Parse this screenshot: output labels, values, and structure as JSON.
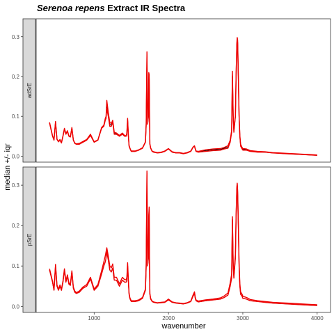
{
  "chart_data": {
    "type": "line",
    "title_italic": "Serenoa repens",
    "title_rest": " Extract IR Spectra",
    "xlabel": "wavenumber",
    "ylabel": "median +/- iqr",
    "xlim": [
      220,
      4180
    ],
    "x_ticks": [
      1000,
      2000,
      3000,
      4000
    ],
    "x_tick_labels": [
      "1000",
      "2000",
      "3000",
      "4000"
    ],
    "legend": "none",
    "grid": false,
    "colors": {
      "median": "#000000",
      "iqr": "#ee0000"
    },
    "panels": [
      {
        "strip_label": "adSrE",
        "ylim": [
          -0.015,
          0.345
        ],
        "y_ticks": [
          0.0,
          0.1,
          0.2,
          0.3
        ],
        "y_tick_labels": [
          "0.0",
          "0.1",
          "0.2",
          "0.3"
        ],
        "x": [
          400,
          440,
          460,
          480,
          500,
          520,
          540,
          560,
          580,
          600,
          620,
          640,
          660,
          680,
          700,
          720,
          740,
          760,
          800,
          850,
          900,
          950,
          1000,
          1050,
          1100,
          1130,
          1150,
          1160,
          1170,
          1190,
          1210,
          1230,
          1250,
          1270,
          1300,
          1340,
          1380,
          1410,
          1430,
          1440,
          1450,
          1460,
          1470,
          1480,
          1490,
          1500,
          1550,
          1600,
          1650,
          1690,
          1700,
          1710,
          1715,
          1720,
          1730,
          1735,
          1740,
          1745,
          1750,
          1760,
          1780,
          1800,
          1850,
          1900,
          1950,
          2000,
          2050,
          2100,
          2150,
          2200,
          2250,
          2300,
          2330,
          2350,
          2360,
          2370,
          2400,
          2500,
          2600,
          2700,
          2750,
          2800,
          2830,
          2850,
          2860,
          2870,
          2880,
          2900,
          2910,
          2920,
          2925,
          2930,
          2940,
          2950,
          2960,
          2970,
          2990,
          3000,
          3050,
          3100,
          3200,
          3300,
          3400,
          3500,
          3600,
          3700,
          3800,
          3900,
          4000
        ],
        "series": [
          {
            "name": "",
            "role": "iqr-low",
            "values": [
              0.083,
              0.05,
              0.04,
              0.085,
              0.042,
              0.036,
              0.04,
              0.033,
              0.05,
              0.068,
              0.055,
              0.062,
              0.05,
              0.048,
              0.07,
              0.04,
              0.032,
              0.03,
              0.03,
              0.035,
              0.04,
              0.052,
              0.035,
              0.04,
              0.07,
              0.075,
              0.09,
              0.095,
              0.12,
              0.1,
              0.075,
              0.075,
              0.085,
              0.055,
              0.055,
              0.05,
              0.055,
              0.05,
              0.05,
              0.055,
              0.09,
              0.05,
              0.025,
              0.02,
              0.015,
              0.012,
              0.012,
              0.015,
              0.02,
              0.035,
              0.08,
              0.25,
              0.16,
              0.08,
              0.1,
              0.19,
              0.195,
              0.1,
              0.03,
              0.02,
              0.012,
              0.01,
              0.008,
              0.009,
              0.012,
              0.018,
              0.01,
              0.008,
              0.008,
              0.006,
              0.008,
              0.012,
              0.022,
              0.025,
              0.018,
              0.012,
              0.01,
              0.012,
              0.014,
              0.015,
              0.018,
              0.02,
              0.035,
              0.06,
              0.2,
              0.1,
              0.06,
              0.1,
              0.2,
              0.28,
              0.292,
              0.285,
              0.2,
              0.1,
              0.05,
              0.025,
              0.018,
              0.015,
              0.015,
              0.012,
              0.01,
              0.01,
              0.008,
              0.007,
              0.006,
              0.005,
              0.004,
              0.003,
              0.002
            ]
          },
          {
            "name": "",
            "role": "median",
            "values": [
              0.084,
              0.05,
              0.041,
              0.086,
              0.042,
              0.036,
              0.041,
              0.033,
              0.05,
              0.069,
              0.056,
              0.063,
              0.05,
              0.048,
              0.071,
              0.04,
              0.032,
              0.03,
              0.031,
              0.036,
              0.041,
              0.053,
              0.035,
              0.04,
              0.071,
              0.076,
              0.092,
              0.097,
              0.13,
              0.105,
              0.08,
              0.078,
              0.088,
              0.057,
              0.056,
              0.05,
              0.056,
              0.051,
              0.05,
              0.056,
              0.092,
              0.051,
              0.026,
              0.02,
              0.015,
              0.012,
              0.012,
              0.015,
              0.02,
              0.035,
              0.081,
              0.257,
              0.162,
              0.081,
              0.1,
              0.2,
              0.2,
              0.1,
              0.03,
              0.02,
              0.012,
              0.01,
              0.008,
              0.009,
              0.012,
              0.018,
              0.01,
              0.008,
              0.008,
              0.006,
              0.008,
              0.012,
              0.022,
              0.025,
              0.018,
              0.012,
              0.011,
              0.014,
              0.016,
              0.017,
              0.02,
              0.023,
              0.038,
              0.062,
              0.207,
              0.1,
              0.062,
              0.1,
              0.2,
              0.28,
              0.295,
              0.29,
              0.2,
              0.1,
              0.05,
              0.028,
              0.02,
              0.017,
              0.016,
              0.013,
              0.011,
              0.01,
              0.008,
              0.007,
              0.006,
              0.005,
              0.004,
              0.003,
              0.002
            ]
          },
          {
            "name": "",
            "role": "iqr-high",
            "values": [
              0.085,
              0.051,
              0.042,
              0.087,
              0.043,
              0.037,
              0.042,
              0.034,
              0.051,
              0.07,
              0.057,
              0.064,
              0.051,
              0.049,
              0.072,
              0.041,
              0.033,
              0.031,
              0.032,
              0.037,
              0.042,
              0.055,
              0.036,
              0.041,
              0.072,
              0.078,
              0.095,
              0.1,
              0.14,
              0.11,
              0.085,
              0.082,
              0.09,
              0.06,
              0.058,
              0.052,
              0.058,
              0.052,
              0.051,
              0.058,
              0.095,
              0.052,
              0.027,
              0.021,
              0.016,
              0.013,
              0.013,
              0.016,
              0.021,
              0.036,
              0.082,
              0.262,
              0.165,
              0.083,
              0.102,
              0.21,
              0.205,
              0.102,
              0.031,
              0.021,
              0.013,
              0.011,
              0.009,
              0.01,
              0.013,
              0.019,
              0.011,
              0.009,
              0.009,
              0.007,
              0.009,
              0.013,
              0.023,
              0.026,
              0.019,
              0.013,
              0.012,
              0.016,
              0.018,
              0.019,
              0.022,
              0.026,
              0.04,
              0.065,
              0.213,
              0.103,
              0.064,
              0.102,
              0.205,
              0.285,
              0.298,
              0.292,
              0.205,
              0.103,
              0.052,
              0.03,
              0.022,
              0.019,
              0.018,
              0.014,
              0.012,
              0.011,
              0.009,
              0.008,
              0.007,
              0.006,
              0.005,
              0.004,
              0.003
            ]
          }
        ]
      },
      {
        "strip_label": "pSrE",
        "ylim": [
          -0.015,
          0.345
        ],
        "y_ticks": [
          0.0,
          0.1,
          0.2,
          0.3
        ],
        "y_tick_labels": [
          "0.0",
          "0.1",
          "0.2",
          "0.3"
        ],
        "x": [
          400,
          440,
          460,
          480,
          500,
          520,
          540,
          560,
          580,
          600,
          620,
          640,
          660,
          680,
          700,
          720,
          740,
          760,
          800,
          850,
          900,
          950,
          1000,
          1050,
          1100,
          1130,
          1150,
          1160,
          1170,
          1190,
          1210,
          1230,
          1250,
          1270,
          1300,
          1340,
          1380,
          1410,
          1430,
          1440,
          1450,
          1460,
          1470,
          1480,
          1490,
          1500,
          1550,
          1600,
          1650,
          1690,
          1700,
          1710,
          1715,
          1720,
          1730,
          1735,
          1740,
          1745,
          1750,
          1760,
          1780,
          1800,
          1850,
          1900,
          1950,
          2000,
          2050,
          2100,
          2150,
          2200,
          2250,
          2300,
          2330,
          2350,
          2360,
          2370,
          2400,
          2500,
          2600,
          2700,
          2750,
          2800,
          2830,
          2850,
          2860,
          2870,
          2880,
          2900,
          2910,
          2920,
          2925,
          2930,
          2940,
          2950,
          2960,
          2970,
          2990,
          3000,
          3050,
          3100,
          3200,
          3300,
          3400,
          3500,
          3600,
          3700,
          3800,
          3900,
          4000
        ],
        "series": [
          {
            "name": "",
            "role": "iqr-low",
            "values": [
              0.09,
              0.06,
              0.04,
              0.1,
              0.05,
              0.04,
              0.05,
              0.04,
              0.06,
              0.09,
              0.06,
              0.075,
              0.055,
              0.052,
              0.085,
              0.045,
              0.035,
              0.032,
              0.035,
              0.045,
              0.05,
              0.068,
              0.04,
              0.05,
              0.08,
              0.1,
              0.11,
              0.12,
              0.135,
              0.115,
              0.09,
              0.085,
              0.095,
              0.065,
              0.065,
              0.05,
              0.065,
              0.06,
              0.06,
              0.065,
              0.1,
              0.06,
              0.03,
              0.02,
              0.015,
              0.012,
              0.012,
              0.014,
              0.02,
              0.04,
              0.1,
              0.33,
              0.2,
              0.1,
              0.12,
              0.22,
              0.24,
              0.1,
              0.03,
              0.018,
              0.012,
              0.01,
              0.008,
              0.009,
              0.01,
              0.016,
              0.01,
              0.008,
              0.007,
              0.006,
              0.008,
              0.012,
              0.025,
              0.032,
              0.02,
              0.014,
              0.011,
              0.014,
              0.016,
              0.018,
              0.022,
              0.028,
              0.05,
              0.07,
              0.215,
              0.1,
              0.07,
              0.12,
              0.22,
              0.29,
              0.302,
              0.28,
              0.2,
              0.1,
              0.05,
              0.03,
              0.025,
              0.02,
              0.018,
              0.014,
              0.012,
              0.01,
              0.008,
              0.007,
              0.006,
              0.005,
              0.004,
              0.003,
              0.002
            ]
          },
          {
            "name": "",
            "role": "median",
            "values": [
              0.09,
              0.06,
              0.04,
              0.1,
              0.05,
              0.04,
              0.05,
              0.04,
              0.06,
              0.09,
              0.06,
              0.075,
              0.055,
              0.052,
              0.085,
              0.045,
              0.035,
              0.032,
              0.035,
              0.045,
              0.05,
              0.068,
              0.04,
              0.05,
              0.08,
              0.1,
              0.11,
              0.12,
              0.135,
              0.115,
              0.09,
              0.085,
              0.095,
              0.065,
              0.065,
              0.05,
              0.065,
              0.06,
              0.06,
              0.065,
              0.1,
              0.06,
              0.03,
              0.02,
              0.015,
              0.012,
              0.012,
              0.014,
              0.02,
              0.04,
              0.1,
              0.33,
              0.2,
              0.1,
              0.12,
              0.22,
              0.24,
              0.1,
              0.03,
              0.018,
              0.012,
              0.01,
              0.008,
              0.009,
              0.01,
              0.016,
              0.01,
              0.008,
              0.007,
              0.006,
              0.008,
              0.012,
              0.025,
              0.032,
              0.02,
              0.014,
              0.011,
              0.014,
              0.016,
              0.018,
              0.022,
              0.028,
              0.05,
              0.07,
              0.215,
              0.1,
              0.07,
              0.12,
              0.22,
              0.29,
              0.302,
              0.28,
              0.2,
              0.1,
              0.05,
              0.03,
              0.025,
              0.02,
              0.018,
              0.014,
              0.012,
              0.01,
              0.008,
              0.007,
              0.006,
              0.005,
              0.004,
              0.003,
              0.002
            ]
          },
          {
            "name": "",
            "role": "iqr-high",
            "values": [
              0.093,
              0.062,
              0.042,
              0.104,
              0.053,
              0.042,
              0.053,
              0.042,
              0.063,
              0.093,
              0.063,
              0.078,
              0.058,
              0.055,
              0.088,
              0.048,
              0.038,
              0.034,
              0.038,
              0.048,
              0.054,
              0.072,
              0.043,
              0.054,
              0.088,
              0.11,
              0.125,
              0.135,
              0.145,
              0.125,
              0.1,
              0.095,
              0.105,
              0.072,
              0.072,
              0.056,
              0.072,
              0.066,
              0.066,
              0.072,
              0.108,
              0.066,
              0.033,
              0.022,
              0.017,
              0.014,
              0.014,
              0.016,
              0.022,
              0.043,
              0.105,
              0.335,
              0.205,
              0.103,
              0.123,
              0.226,
              0.246,
              0.103,
              0.032,
              0.02,
              0.013,
              0.011,
              0.009,
              0.01,
              0.011,
              0.018,
              0.011,
              0.009,
              0.008,
              0.007,
              0.009,
              0.013,
              0.028,
              0.036,
              0.023,
              0.016,
              0.013,
              0.016,
              0.018,
              0.021,
              0.026,
              0.033,
              0.058,
              0.08,
              0.222,
              0.108,
              0.078,
              0.13,
              0.228,
              0.296,
              0.305,
              0.288,
              0.21,
              0.108,
              0.057,
              0.036,
              0.03,
              0.025,
              0.022,
              0.017,
              0.014,
              0.012,
              0.01,
              0.009,
              0.008,
              0.007,
              0.006,
              0.005,
              0.004
            ]
          }
        ]
      }
    ]
  }
}
